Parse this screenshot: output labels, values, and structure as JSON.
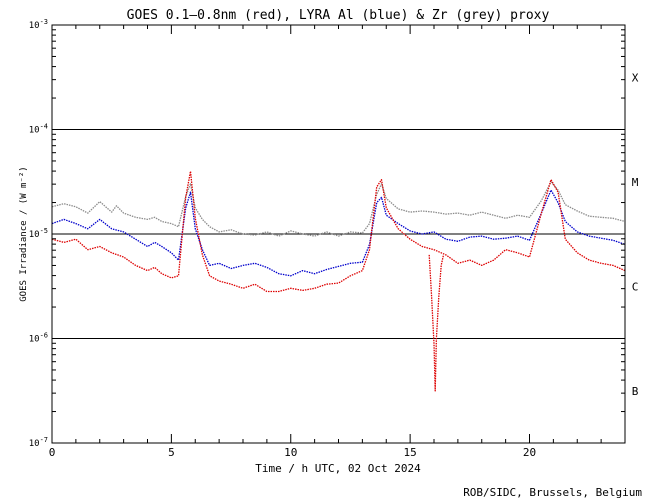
{
  "chart_data": {
    "type": "line",
    "title": "GOES 0.1–0.8nm (red), LYRA Al (blue) & Zr (grey) proxy",
    "xlabel": "Time / h UTC, 02 Oct 2024",
    "ylabel": "GOES Irradiance / (W m⁻²)",
    "credit": "ROB/SIDC, Brussels, Belgium",
    "xlim": [
      0,
      24
    ],
    "ylim_log10": [
      -7,
      -3
    ],
    "y_scale": "log",
    "x_ticks": [
      {
        "value": 0,
        "label": "0"
      },
      {
        "value": 5,
        "label": "5"
      },
      {
        "value": 10,
        "label": "10"
      },
      {
        "value": 15,
        "label": "15"
      },
      {
        "value": 20,
        "label": "20"
      }
    ],
    "y_ticks": [
      {
        "exp": -7,
        "base": "10",
        "sup": "-7"
      },
      {
        "exp": -6,
        "base": "10",
        "sup": "-6"
      },
      {
        "exp": -5,
        "base": "10",
        "sup": "-5"
      },
      {
        "exp": -4,
        "base": "10",
        "sup": "-4"
      },
      {
        "exp": -3,
        "base": "10",
        "sup": "-3"
      }
    ],
    "flare_classes": [
      {
        "label": "B",
        "log10": -6.5
      },
      {
        "label": "C",
        "log10": -5.5
      },
      {
        "label": "M",
        "log10": -4.5
      },
      {
        "label": "X",
        "log10": -3.5
      }
    ],
    "class_lines_log10": [
      -6,
      -5,
      -4
    ],
    "series": [
      {
        "name": "LYRA Zr proxy",
        "color": "#8c8c8c",
        "points": [
          [
            0,
            -4.74
          ],
          [
            0.5,
            -4.71
          ],
          [
            1,
            -4.74
          ],
          [
            1.5,
            -4.8
          ],
          [
            2,
            -4.69
          ],
          [
            2.5,
            -4.79
          ],
          [
            2.7,
            -4.73
          ],
          [
            3,
            -4.8
          ],
          [
            3.5,
            -4.84
          ],
          [
            4,
            -4.86
          ],
          [
            4.3,
            -4.84
          ],
          [
            4.6,
            -4.88
          ],
          [
            5,
            -4.9
          ],
          [
            5.3,
            -4.93
          ],
          [
            5.6,
            -4.64
          ],
          [
            5.8,
            -4.52
          ],
          [
            6,
            -4.75
          ],
          [
            6.3,
            -4.86
          ],
          [
            6.6,
            -4.93
          ],
          [
            7,
            -4.98
          ],
          [
            7.5,
            -4.96
          ],
          [
            8,
            -5.0
          ],
          [
            8.5,
            -5.01
          ],
          [
            9,
            -4.98
          ],
          [
            9.5,
            -5.02
          ],
          [
            10,
            -4.97
          ],
          [
            10.5,
            -5.0
          ],
          [
            11,
            -5.02
          ],
          [
            11.5,
            -4.98
          ],
          [
            12,
            -5.02
          ],
          [
            12.5,
            -4.98
          ],
          [
            13,
            -4.99
          ],
          [
            13.3,
            -4.9
          ],
          [
            13.6,
            -4.62
          ],
          [
            13.8,
            -4.52
          ],
          [
            14,
            -4.66
          ],
          [
            14.5,
            -4.76
          ],
          [
            15,
            -4.79
          ],
          [
            15.5,
            -4.78
          ],
          [
            16,
            -4.79
          ],
          [
            16.5,
            -4.81
          ],
          [
            17,
            -4.8
          ],
          [
            17.5,
            -4.82
          ],
          [
            18,
            -4.79
          ],
          [
            18.5,
            -4.82
          ],
          [
            19,
            -4.85
          ],
          [
            19.5,
            -4.82
          ],
          [
            20,
            -4.84
          ],
          [
            20.5,
            -4.68
          ],
          [
            20.9,
            -4.5
          ],
          [
            21.2,
            -4.58
          ],
          [
            21.5,
            -4.72
          ],
          [
            22,
            -4.78
          ],
          [
            22.5,
            -4.83
          ],
          [
            23,
            -4.84
          ],
          [
            23.5,
            -4.85
          ],
          [
            24,
            -4.88
          ]
        ]
      },
      {
        "name": "LYRA Al proxy",
        "color": "#0000cc",
        "points": [
          [
            0,
            -4.9
          ],
          [
            0.5,
            -4.86
          ],
          [
            1,
            -4.9
          ],
          [
            1.5,
            -4.95
          ],
          [
            2,
            -4.86
          ],
          [
            2.5,
            -4.95
          ],
          [
            3,
            -4.98
          ],
          [
            3.5,
            -5.05
          ],
          [
            4,
            -5.12
          ],
          [
            4.3,
            -5.08
          ],
          [
            4.6,
            -5.12
          ],
          [
            5,
            -5.18
          ],
          [
            5.3,
            -5.25
          ],
          [
            5.6,
            -4.75
          ],
          [
            5.8,
            -4.6
          ],
          [
            6,
            -4.95
          ],
          [
            6.3,
            -5.15
          ],
          [
            6.6,
            -5.3
          ],
          [
            7,
            -5.28
          ],
          [
            7.5,
            -5.33
          ],
          [
            8,
            -5.3
          ],
          [
            8.5,
            -5.28
          ],
          [
            9,
            -5.32
          ],
          [
            9.5,
            -5.38
          ],
          [
            10,
            -5.4
          ],
          [
            10.5,
            -5.35
          ],
          [
            11,
            -5.38
          ],
          [
            11.5,
            -5.34
          ],
          [
            12,
            -5.31
          ],
          [
            12.5,
            -5.28
          ],
          [
            13,
            -5.27
          ],
          [
            13.3,
            -5.1
          ],
          [
            13.6,
            -4.7
          ],
          [
            13.8,
            -4.65
          ],
          [
            14,
            -4.82
          ],
          [
            14.5,
            -4.9
          ],
          [
            15,
            -4.97
          ],
          [
            15.5,
            -5.0
          ],
          [
            16,
            -4.98
          ],
          [
            16.5,
            -5.05
          ],
          [
            17,
            -5.07
          ],
          [
            17.5,
            -5.03
          ],
          [
            18,
            -5.02
          ],
          [
            18.5,
            -5.05
          ],
          [
            19,
            -5.04
          ],
          [
            19.5,
            -5.02
          ],
          [
            20,
            -5.06
          ],
          [
            20.5,
            -4.8
          ],
          [
            20.9,
            -4.58
          ],
          [
            21.2,
            -4.7
          ],
          [
            21.5,
            -4.88
          ],
          [
            22,
            -4.98
          ],
          [
            22.5,
            -5.02
          ],
          [
            23,
            -5.04
          ],
          [
            23.5,
            -5.06
          ],
          [
            24,
            -5.1
          ]
        ]
      },
      {
        "name": "GOES 0.1-0.8nm",
        "color": "#dd0000",
        "points": [
          [
            0,
            -5.05
          ],
          [
            0.5,
            -5.08
          ],
          [
            1,
            -5.05
          ],
          [
            1.5,
            -5.15
          ],
          [
            2,
            -5.12
          ],
          [
            2.5,
            -5.18
          ],
          [
            3,
            -5.22
          ],
          [
            3.5,
            -5.3
          ],
          [
            4,
            -5.35
          ],
          [
            4.3,
            -5.32
          ],
          [
            4.6,
            -5.38
          ],
          [
            5,
            -5.42
          ],
          [
            5.3,
            -5.4
          ],
          [
            5.6,
            -4.65
          ],
          [
            5.8,
            -4.4
          ],
          [
            6,
            -4.85
          ],
          [
            6.3,
            -5.2
          ],
          [
            6.6,
            -5.4
          ],
          [
            7,
            -5.45
          ],
          [
            7.5,
            -5.48
          ],
          [
            8,
            -5.52
          ],
          [
            8.5,
            -5.48
          ],
          [
            9,
            -5.55
          ],
          [
            9.5,
            -5.55
          ],
          [
            10,
            -5.52
          ],
          [
            10.5,
            -5.54
          ],
          [
            11,
            -5.52
          ],
          [
            11.5,
            -5.48
          ],
          [
            12,
            -5.47
          ],
          [
            12.5,
            -5.4
          ],
          [
            13,
            -5.35
          ],
          [
            13.3,
            -5.15
          ],
          [
            13.6,
            -4.55
          ],
          [
            13.8,
            -4.48
          ],
          [
            14,
            -4.75
          ],
          [
            14.5,
            -4.95
          ],
          [
            15,
            -5.05
          ],
          [
            15.5,
            -5.12
          ],
          [
            16,
            -5.15
          ],
          [
            16.5,
            -5.2
          ],
          [
            17,
            -5.28
          ],
          [
            17.5,
            -5.25
          ],
          [
            18,
            -5.3
          ],
          [
            18.5,
            -5.25
          ],
          [
            19,
            -5.15
          ],
          [
            19.5,
            -5.18
          ],
          [
            20,
            -5.22
          ],
          [
            20.5,
            -4.8
          ],
          [
            20.9,
            -4.48
          ],
          [
            21.2,
            -4.6
          ],
          [
            21.5,
            -5.05
          ],
          [
            22,
            -5.18
          ],
          [
            22.5,
            -5.25
          ],
          [
            23,
            -5.28
          ],
          [
            23.5,
            -5.3
          ],
          [
            24,
            -5.35
          ]
        ]
      },
      {
        "name": "GOES dropout dip",
        "color": "#dd0000",
        "points": [
          [
            15.8,
            -5.2
          ],
          [
            15.9,
            -5.6
          ],
          [
            16.0,
            -6.05
          ],
          [
            16.05,
            -6.5
          ],
          [
            16.1,
            -6.0
          ],
          [
            16.2,
            -5.6
          ],
          [
            16.3,
            -5.3
          ],
          [
            16.4,
            -5.2
          ]
        ]
      }
    ]
  }
}
